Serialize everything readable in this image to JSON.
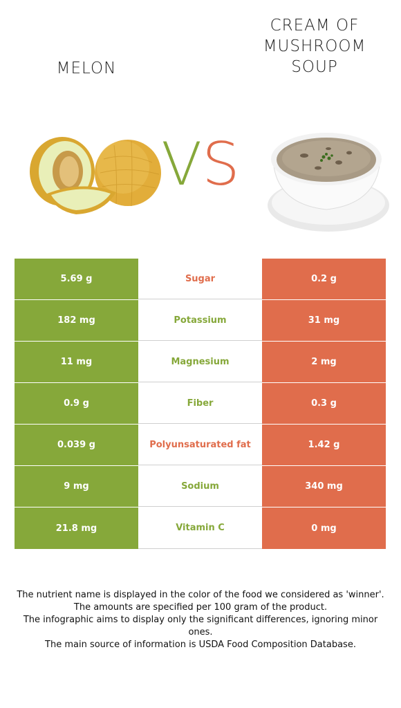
{
  "foods": {
    "left": {
      "name": "MELON",
      "color": "#86a83a",
      "image_icon": "melon-icon"
    },
    "right": {
      "name": "CREAM OF\nMUSHROOM\nSOUP",
      "color": "#e06d4c",
      "image_icon": "mushroom-soup-icon"
    }
  },
  "vs": {
    "v": "V",
    "s": "S"
  },
  "rows": [
    {
      "left": "5.69 g",
      "nutrient": "Sugar",
      "right": "0.2 g",
      "winner": "right"
    },
    {
      "left": "182 mg",
      "nutrient": "Potassium",
      "right": "31 mg",
      "winner": "left"
    },
    {
      "left": "11 mg",
      "nutrient": "Magnesium",
      "right": "2 mg",
      "winner": "left"
    },
    {
      "left": "0.9 g",
      "nutrient": "Fiber",
      "right": "0.3 g",
      "winner": "left"
    },
    {
      "left": "0.039 g",
      "nutrient": "Polyunsaturated fat",
      "right": "1.42 g",
      "winner": "right"
    },
    {
      "left": "9 mg",
      "nutrient": "Sodium",
      "right": "340 mg",
      "winner": "left"
    },
    {
      "left": "21.8 mg",
      "nutrient": "Vitamin C",
      "right": "0 mg",
      "winner": "left"
    }
  ],
  "notes": [
    "The nutrient name is displayed in the color of the food we considered as 'winner'.",
    "The amounts are specified per 100 gram of the product.",
    "The infographic aims to display only the significant differences, ignoring minor ones.",
    "The main source of information is USDA Food Composition Database."
  ]
}
